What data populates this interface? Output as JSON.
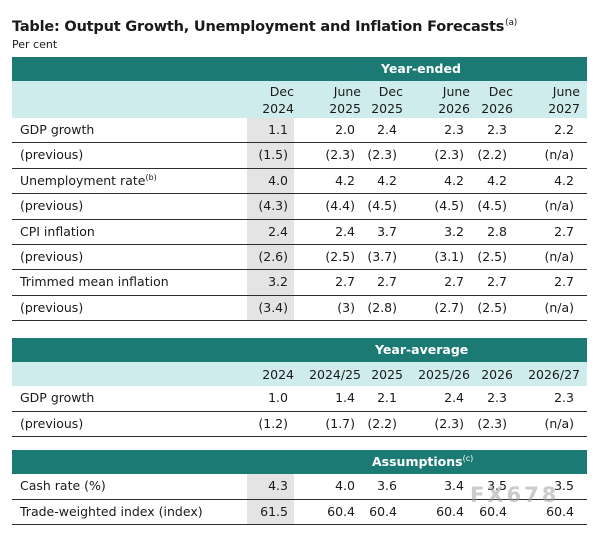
{
  "title": "Table: Output Growth, Unemployment and Inflation Forecasts",
  "title_note": "(a)",
  "subtitle": "Per cent",
  "year_ended": {
    "band": "Year-ended",
    "columns": [
      {
        "top": "Dec",
        "bottom": "2024"
      },
      {
        "top": "June",
        "bottom": "2025"
      },
      {
        "top": "Dec",
        "bottom": "2025"
      },
      {
        "top": "June",
        "bottom": "2026"
      },
      {
        "top": "Dec",
        "bottom": "2026"
      },
      {
        "top": "June",
        "bottom": "2027"
      }
    ],
    "rows": [
      {
        "label": "GDP growth",
        "note": "",
        "values": [
          "1.1",
          "2.0",
          "2.4",
          "2.3",
          "2.3",
          "2.2"
        ]
      },
      {
        "label": "(previous)",
        "note": "",
        "values": [
          "(1.5)",
          "(2.3)",
          "(2.3)",
          "(2.3)",
          "(2.2)",
          "(n/a)"
        ]
      },
      {
        "label": "Unemployment rate",
        "note": "(b)",
        "values": [
          "4.0",
          "4.2",
          "4.2",
          "4.2",
          "4.2",
          "4.2"
        ]
      },
      {
        "label": "(previous)",
        "note": "",
        "values": [
          "(4.3)",
          "(4.4)",
          "(4.5)",
          "(4.5)",
          "(4.5)",
          "(n/a)"
        ]
      },
      {
        "label": "CPI inflation",
        "note": "",
        "values": [
          "2.4",
          "2.4",
          "3.7",
          "3.2",
          "2.8",
          "2.7"
        ]
      },
      {
        "label": "(previous)",
        "note": "",
        "values": [
          "(2.6)",
          "(2.5)",
          "(3.7)",
          "(3.1)",
          "(2.5)",
          "(n/a)"
        ]
      },
      {
        "label": "Trimmed mean inflation",
        "note": "",
        "values": [
          "3.2",
          "2.7",
          "2.7",
          "2.7",
          "2.7",
          "2.7"
        ]
      },
      {
        "label": "(previous)",
        "note": "",
        "values": [
          "(3.4)",
          "(3)",
          "(2.8)",
          "(2.7)",
          "(2.5)",
          "(n/a)"
        ]
      }
    ]
  },
  "year_average": {
    "band": "Year-average",
    "columns": [
      "2024",
      "2024/25",
      "2025",
      "2025/26",
      "2026",
      "2026/27"
    ],
    "rows": [
      {
        "label": "GDP growth",
        "values": [
          "1.0",
          "1.4",
          "2.1",
          "2.4",
          "2.3",
          "2.3"
        ]
      },
      {
        "label": "(previous)",
        "values": [
          "(1.2)",
          "(1.7)",
          "(2.2)",
          "(2.3)",
          "(2.3)",
          "(n/a)"
        ]
      }
    ]
  },
  "assumptions": {
    "band": "Assumptions",
    "note": "(c)",
    "rows": [
      {
        "label": "Cash rate (%)",
        "values": [
          "4.3",
          "4.0",
          "3.6",
          "3.4",
          "3.5",
          "3.5"
        ]
      },
      {
        "label": "Trade-weighted index (index)",
        "values": [
          "61.5",
          "60.4",
          "60.4",
          "60.4",
          "60.4",
          "60.4"
        ]
      }
    ]
  },
  "watermark": "FX678",
  "colors": {
    "band": "#1b7a74",
    "header": "#cfecec",
    "shade": "#e4e4e4"
  }
}
